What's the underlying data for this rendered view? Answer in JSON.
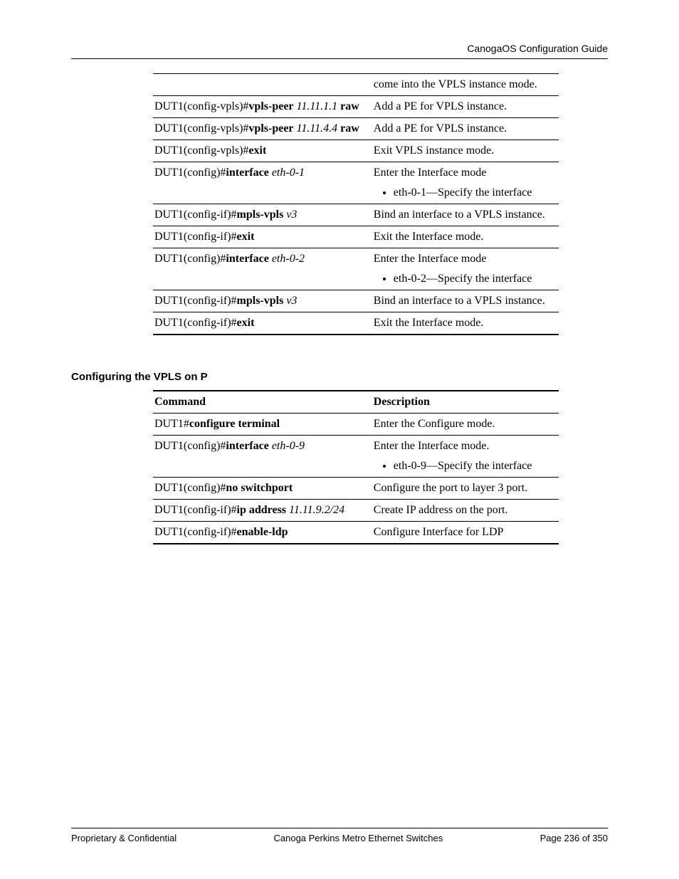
{
  "header": {
    "title": "CanogaOS Configuration Guide"
  },
  "table1": {
    "rows": [
      {
        "cmd_html": "",
        "desc_html": "come into the VPLS instance mode.",
        "desc_justify": true,
        "top_edge": true
      },
      {
        "cmd_html": "DUT1(config-vpls)#<span class='b'>vpls-peer</span> <span class='i'>11.11.1.1</span> <span class='b'>raw</span>",
        "cmd_justify": true,
        "desc_html": "Add a PE for VPLS instance."
      },
      {
        "cmd_html": "DUT1(config-vpls)#<span class='b'>vpls-peer</span> <span class='i'>11.11.4.4</span> <span class='b'>raw</span>",
        "cmd_justify": true,
        "desc_html": "Add a PE for VPLS instance."
      },
      {
        "cmd_html": "DUT1(config-vpls)#<span class='b'>exit</span>",
        "desc_html": "Exit VPLS instance mode."
      },
      {
        "cmd_html": "DUT1(config)#<span class='b'>interface</span> <span class='i'>eth-0-1</span>",
        "desc_html": "Enter the Interface mode",
        "desc_bullets": [
          "eth-0-1—Specify the interface"
        ]
      },
      {
        "cmd_html": "DUT1(config-if)#<span class='b'>mpls-vpls</span> <span class='i'>v3</span>",
        "desc_html": "Bind an interface to a VPLS instance.",
        "desc_justify": true
      },
      {
        "cmd_html": "DUT1(config-if)#<span class='b'>exit</span>",
        "desc_html": "Exit the Interface mode."
      },
      {
        "cmd_html": "DUT1(config)#<span class='b'>interface</span> <span class='i'>eth-0-2</span>",
        "desc_html": "Enter the Interface mode",
        "desc_bullets": [
          "eth-0-2—Specify the interface"
        ]
      },
      {
        "cmd_html": "DUT1(config-if)#<span class='b'>mpls-vpls</span> <span class='i'>v3</span>",
        "desc_html": "Bind an interface to a VPLS instance.",
        "desc_justify": true
      },
      {
        "cmd_html": "DUT1(config-if)#<span class='b'>exit</span>",
        "desc_html": "Exit the Interface mode."
      }
    ]
  },
  "section2_heading": "Configuring the VPLS on P",
  "table2": {
    "header": {
      "cmd": "Command",
      "desc": "Description"
    },
    "rows": [
      {
        "cmd_html": "DUT1#<span class='b'>configure terminal</span>",
        "desc_html": "Enter the Configure mode."
      },
      {
        "cmd_html": "DUT1(config)#<span class='b'>interface</span> <span class='i'>eth-0-9</span>",
        "desc_html": "Enter the Interface mode.",
        "desc_bullets": [
          "eth-0-9—Specify the interface"
        ]
      },
      {
        "cmd_html": "DUT1(config)#<span class='b'>no switchport</span>",
        "desc_html": "Configure the port to layer 3 port.",
        "desc_justify": true
      },
      {
        "cmd_html": "DUT1(config-if)#<span class='b'>ip address</span> <span class='i'>11.11.9.2/24</span>",
        "cmd_justify": true,
        "desc_html": "Create IP address on the port."
      },
      {
        "cmd_html": "DUT1(config-if)#<span class='b'>enable-ldp</span>",
        "desc_html": "Configure Interface for LDP"
      }
    ]
  },
  "footer": {
    "left": "Proprietary & Confidential",
    "center": "Canoga Perkins Metro Ethernet Switches",
    "right": "Page 236 of 350"
  }
}
